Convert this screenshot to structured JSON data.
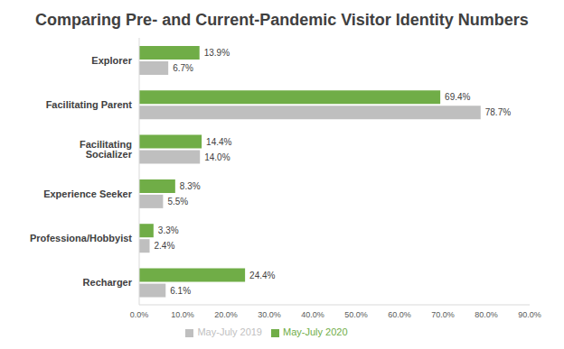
{
  "chart_data": {
    "type": "bar",
    "title": "Comparing Pre- and Current-Pandemic Visitor Identity Numbers",
    "orientation": "horizontal",
    "categories": [
      "Explorer",
      "Facilitating Parent",
      "Facilitating Socializer",
      "Experience Seeker",
      "Professiona/Hobbyist",
      "Recharger"
    ],
    "series": [
      {
        "name": "May-July 2020",
        "color": "#70ad47",
        "values": [
          13.9,
          69.4,
          14.4,
          8.3,
          3.3,
          24.4
        ],
        "value_labels": [
          "13.9%",
          "69.4%",
          "14.4%",
          "8.3%",
          "3.3%",
          "24.4%"
        ]
      },
      {
        "name": "May-July 2019",
        "color": "#bfbfbf",
        "values": [
          6.7,
          78.7,
          14.0,
          5.5,
          2.4,
          6.1
        ],
        "value_labels": [
          "6.7%",
          "78.7%",
          "14.0%",
          "5.5%",
          "2.4%",
          "6.1%"
        ]
      }
    ],
    "xlim": [
      0,
      90
    ],
    "xticks": [
      {
        "value": 0,
        "label": "0.0%"
      },
      {
        "value": 10,
        "label": "10.0%"
      },
      {
        "value": 20,
        "label": "20.0%"
      },
      {
        "value": 30,
        "label": "30.0%"
      },
      {
        "value": 40,
        "label": "40.0%"
      },
      {
        "value": 50,
        "label": "50.0%"
      },
      {
        "value": 60,
        "label": "60.0%"
      },
      {
        "value": 70,
        "label": "70.0%"
      },
      {
        "value": 80,
        "label": "80.0%"
      },
      {
        "value": 90,
        "label": "90.0%"
      }
    ],
    "grid": false,
    "legend": "bottom",
    "data_labels": true
  }
}
